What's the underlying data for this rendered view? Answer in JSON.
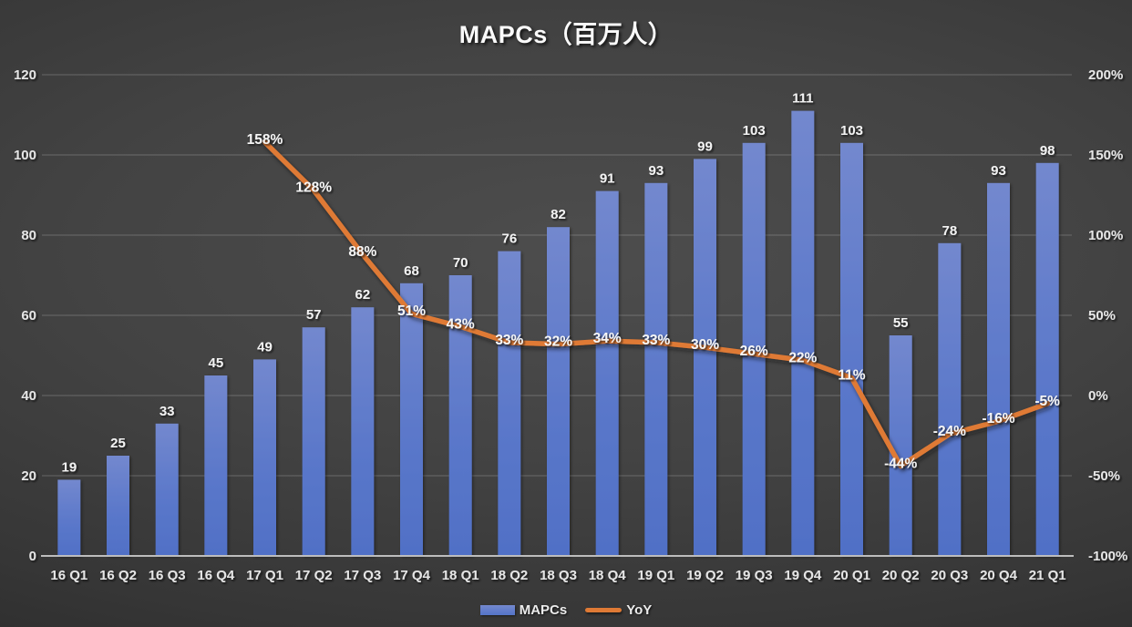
{
  "chart_data": {
    "type": "combo",
    "title": "MAPCs（百万人）",
    "categories": [
      "16 Q1",
      "16 Q2",
      "16 Q3",
      "16 Q4",
      "17 Q1",
      "17 Q2",
      "17 Q3",
      "17 Q4",
      "18 Q1",
      "18 Q2",
      "18 Q3",
      "18 Q4",
      "19 Q1",
      "19 Q2",
      "19 Q3",
      "19 Q4",
      "20 Q1",
      "20 Q2",
      "20 Q3",
      "20 Q4",
      "21 Q1"
    ],
    "series": [
      {
        "name": "MAPCs",
        "type": "bar",
        "axis": "left",
        "color": "#5b78ca",
        "values": [
          19,
          25,
          33,
          45,
          49,
          57,
          62,
          68,
          70,
          76,
          82,
          91,
          93,
          99,
          103,
          111,
          103,
          55,
          78,
          93,
          98
        ],
        "data_labels": [
          "19",
          "25",
          "33",
          "45",
          "49",
          "57",
          "62",
          "68",
          "70",
          "76",
          "82",
          "91",
          "93",
          "99",
          "103",
          "111",
          "103",
          "55",
          "78",
          "93",
          "98"
        ]
      },
      {
        "name": "YoY",
        "type": "line",
        "axis": "right",
        "color": "#df7a35",
        "unit": "%",
        "values": [
          null,
          null,
          null,
          null,
          158,
          128,
          88,
          51,
          43,
          33,
          32,
          34,
          33,
          30,
          26,
          22,
          11,
          -44,
          -24,
          -16,
          -5
        ],
        "data_labels": [
          null,
          null,
          null,
          null,
          "158%",
          "128%",
          "88%",
          "51%",
          "43%",
          "33%",
          "32%",
          "34%",
          "33%",
          "30%",
          "26%",
          "22%",
          "11%",
          "-44%",
          "-24%",
          "-16%",
          "-5%"
        ]
      }
    ],
    "left_axis": {
      "min": 0,
      "max": 120,
      "step": 20,
      "ticks": [
        "0",
        "20",
        "40",
        "60",
        "80",
        "100",
        "120"
      ]
    },
    "right_axis": {
      "min": -100,
      "max": 200,
      "step": 50,
      "ticks": [
        "-100%",
        "-50%",
        "0%",
        "50%",
        "100%",
        "150%",
        "200%"
      ]
    },
    "grid": "horizontal",
    "legend_position": "bottom",
    "colors": {
      "background_center": "#4d4d4d",
      "background_edge": "#202020",
      "bar_top": "#7388ce",
      "bar_bottom": "#5070c6",
      "line": "#df7a35",
      "gridline": "#6a6a6a",
      "axis_line": "#bdbdbd",
      "label_text": "#f2f2f2"
    }
  },
  "legend": {
    "items": [
      {
        "label": "MAPCs",
        "swatch": "bar"
      },
      {
        "label": "YoY",
        "swatch": "line"
      }
    ]
  }
}
